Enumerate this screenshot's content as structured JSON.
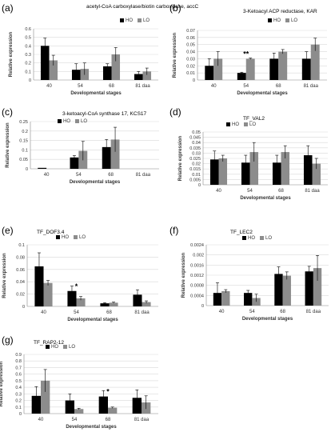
{
  "chart_data": [
    {
      "panel": "(a)",
      "type": "bar",
      "title": "acetyl-CoA carboxylase/biotin carboxylase, accC",
      "xlabel": "Developmental stages",
      "ylabel": "Relative expression",
      "categories": [
        "40",
        "54",
        "68",
        "81 daa"
      ],
      "ylim": [
        0,
        0.6
      ],
      "yticks": [
        "0",
        "0.1",
        "0.2",
        "0.3",
        "0.4",
        "0.5",
        "0.6"
      ],
      "grid": true,
      "legend_position": "top-right",
      "series": [
        {
          "name": "HO",
          "color": "#000000",
          "values": [
            0.4,
            0.12,
            0.16,
            0.07
          ],
          "errors": [
            0.09,
            0.07,
            0.03,
            0.03
          ]
        },
        {
          "name": "LO",
          "color": "#8c8c8c",
          "values": [
            0.23,
            0.13,
            0.3,
            0.1
          ],
          "errors": [
            0.06,
            0.07,
            0.08,
            0.04
          ]
        }
      ],
      "annotations": []
    },
    {
      "panel": "(b)",
      "type": "bar",
      "title": "3-Ketoacyl ACP reductase, KAR",
      "xlabel": "Developmental stages",
      "ylabel": "Relative expression",
      "categories": [
        "40",
        "54",
        "68",
        "81 daa"
      ],
      "ylim": [
        0,
        0.07
      ],
      "yticks": [
        "0",
        "0.01",
        "0.02",
        "0.03",
        "0.04",
        "0.05",
        "0.06",
        "0.07"
      ],
      "grid": true,
      "legend_position": "top-right",
      "series": [
        {
          "name": "HO",
          "color": "#000000",
          "values": [
            0.02,
            0.01,
            0.03,
            0.03
          ],
          "errors": [
            0.01,
            0.001,
            0.008,
            0.01
          ]
        },
        {
          "name": "LO",
          "color": "#8c8c8c",
          "values": [
            0.03,
            0.03,
            0.04,
            0.05
          ],
          "errors": [
            0.01,
            0.001,
            0.003,
            0.009
          ]
        }
      ],
      "annotations": [
        {
          "category": "54",
          "text": "**"
        }
      ]
    },
    {
      "panel": "(c)",
      "type": "bar",
      "title": "3-ketoacyl-CoA synthase 17, KCS17",
      "xlabel": "Developmental stages",
      "ylabel": "Relative expression",
      "categories": [
        "40",
        "54",
        "68",
        "81 daa"
      ],
      "ylim": [
        0,
        0.25
      ],
      "yticks": [
        "0",
        "0.05",
        "0.1",
        "0.15",
        "0.2",
        "0.25"
      ],
      "grid": true,
      "legend_position": "top-left",
      "series": [
        {
          "name": "HO",
          "color": "#000000",
          "values": [
            0.005,
            0.06,
            0.115,
            0.0
          ],
          "errors": [
            0.0,
            0.01,
            0.04,
            0.0
          ]
        },
        {
          "name": "LO",
          "color": "#8c8c8c",
          "values": [
            0.0,
            0.095,
            0.155,
            0.0
          ],
          "errors": [
            0.0,
            0.05,
            0.065,
            0.0
          ]
        }
      ],
      "annotations": []
    },
    {
      "panel": "(d)",
      "type": "bar",
      "title": "TF_VAL2",
      "xlabel": "Developmental stages",
      "ylabel": "Relative expression",
      "categories": [
        "40",
        "54",
        "68",
        "81 daa"
      ],
      "ylim": [
        0,
        0.05
      ],
      "yticks": [
        "0",
        "0.005",
        "0.01",
        "0.015",
        "0.02",
        "0.025",
        "0.03",
        "0.035",
        "0.04",
        "0.045",
        "0.05"
      ],
      "grid": true,
      "legend_position": "top-left",
      "series": [
        {
          "name": "HO",
          "color": "#000000",
          "values": [
            0.024,
            0.021,
            0.021,
            0.028
          ],
          "errors": [
            0.008,
            0.007,
            0.007,
            0.009
          ]
        },
        {
          "name": "LO",
          "color": "#8c8c8c",
          "values": [
            0.025,
            0.031,
            0.031,
            0.02
          ],
          "errors": [
            0.003,
            0.009,
            0.006,
            0.005
          ]
        }
      ],
      "annotations": []
    },
    {
      "panel": "(e)",
      "type": "bar",
      "title": "TF_DOF3.4",
      "xlabel": "Developmental stages",
      "ylabel": "Relative expression",
      "categories": [
        "40",
        "54",
        "68",
        "81 daa"
      ],
      "ylim": [
        0,
        0.1
      ],
      "yticks": [
        "0",
        "0.02",
        "0.04",
        "0.06",
        "0.08",
        "0.1"
      ],
      "grid": true,
      "legend_position": "top-left",
      "series": [
        {
          "name": "HO",
          "color": "#000000",
          "values": [
            0.065,
            0.025,
            0.005,
            0.019
          ],
          "errors": [
            0.022,
            0.008,
            0.001,
            0.008
          ]
        },
        {
          "name": "LO",
          "color": "#8c8c8c",
          "values": [
            0.038,
            0.013,
            0.006,
            0.007
          ],
          "errors": [
            0.004,
            0.003,
            0.001,
            0.002
          ]
        }
      ],
      "annotations": [
        {
          "category": "54",
          "text": "*"
        }
      ]
    },
    {
      "panel": "(f)",
      "type": "bar",
      "title": "TF_LEC2",
      "xlabel": "Developmental stages",
      "ylabel": "Relative expression",
      "categories": [
        "40",
        "54",
        "68",
        "81 daa"
      ],
      "ylim": [
        0,
        0.0024
      ],
      "yticks": [
        "0",
        "0.0004",
        "0.0008",
        "0.0012",
        "0.0016",
        "0.002",
        "0.0024"
      ],
      "grid": true,
      "legend_position": "top-left",
      "series": [
        {
          "name": "HO",
          "color": "#000000",
          "values": [
            0.0005,
            0.0005,
            0.00125,
            0.00135
          ],
          "errors": [
            0.0004,
            0.0001,
            0.00028,
            0.0002
          ]
        },
        {
          "name": "LO",
          "color": "#8c8c8c",
          "values": [
            0.00057,
            0.0003,
            0.00118,
            0.00148
          ],
          "errors": [
            6e-05,
            0.00015,
            0.00015,
            0.0005
          ]
        }
      ],
      "annotations": []
    },
    {
      "panel": "(g)",
      "type": "bar",
      "title": "TF_RAP2-12",
      "xlabel": "Developmental stages",
      "ylabel": "Relative expression",
      "categories": [
        "40",
        "54",
        "68",
        "81 daa"
      ],
      "ylim": [
        0,
        0.9
      ],
      "yticks": [
        "0",
        "0.1",
        "0.2",
        "0.3",
        "0.4",
        "0.5",
        "0.6",
        "0.7",
        "0.8",
        "0.9"
      ],
      "grid": true,
      "legend_position": "top-left",
      "series": [
        {
          "name": "HO",
          "color": "#000000",
          "values": [
            0.27,
            0.2,
            0.26,
            0.24
          ],
          "errors": [
            0.14,
            0.1,
            0.09,
            0.12
          ]
        },
        {
          "name": "LO",
          "color": "#8c8c8c",
          "values": [
            0.5,
            0.07,
            0.09,
            0.17
          ],
          "errors": [
            0.17,
            0.01,
            0.01,
            0.1
          ]
        }
      ],
      "annotations": [
        {
          "category": "68",
          "text": "*"
        }
      ]
    }
  ]
}
